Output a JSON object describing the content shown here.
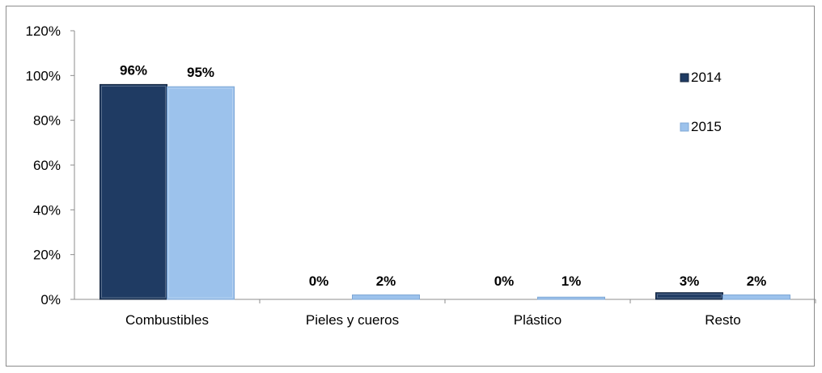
{
  "chart_data": {
    "type": "bar",
    "categories": [
      "Combustibles",
      "Pieles y cueros",
      "Plástico",
      "Resto"
    ],
    "series": [
      {
        "name": "2014",
        "values": [
          96,
          0,
          0,
          3
        ],
        "labels": [
          "96%",
          "0%",
          "0%",
          "3%"
        ],
        "color": "#1f3b63"
      },
      {
        "name": "2015",
        "values": [
          95,
          2,
          1,
          2
        ],
        "labels": [
          "95%",
          "2%",
          "1%",
          "2%"
        ],
        "color": "#9cc2ec"
      }
    ],
    "y_ticks": [
      "0%",
      "20%",
      "40%",
      "60%",
      "80%",
      "100%",
      "120%"
    ],
    "ylim": [
      0,
      120
    ],
    "legend_position": "top-right",
    "grid": false
  }
}
